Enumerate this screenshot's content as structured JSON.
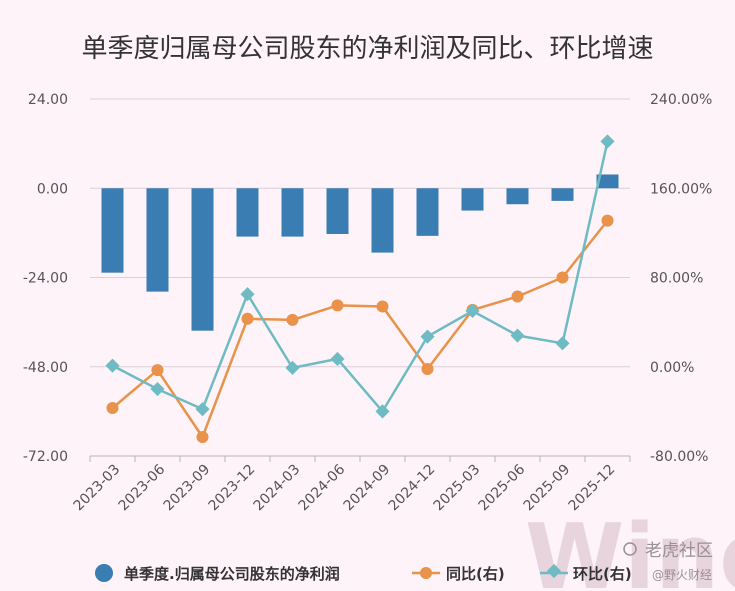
{
  "chart_data": {
    "type": "bar+line",
    "title": "单季度归属母公司股东的净利润及同比、环比增速",
    "categories": [
      "2023-03",
      "2023-06",
      "2023-09",
      "2023-12",
      "2024-03",
      "2024-06",
      "2024-09",
      "2024-12",
      "2025-03",
      "2025-06",
      "2025-09",
      "2025-12"
    ],
    "left_axis": {
      "min": -72,
      "max": 24,
      "ticks": [
        "24.00",
        "0.00",
        "-24.00",
        "-48.00",
        "-72.00"
      ]
    },
    "right_axis": {
      "min": -80,
      "max": 240,
      "ticks": [
        "240.00%",
        "160.00%",
        "80.00%",
        "0.00%",
        "-80.00%"
      ]
    },
    "series": [
      {
        "name": "单季度.归属母公司股东的净利润",
        "type": "bar",
        "axis": "left",
        "color": "#3a7db3",
        "values": [
          -22.7,
          -27.8,
          -38.3,
          -13.0,
          -13.0,
          -12.3,
          -17.3,
          -12.8,
          -6.0,
          -4.3,
          -3.4,
          3.7
        ]
      },
      {
        "name": "同比(右)",
        "type": "line",
        "axis": "right",
        "marker": "circle",
        "color": "#e8924a",
        "values": [
          -37,
          -3,
          -63,
          43,
          42,
          55,
          54,
          -2,
          51,
          63,
          80,
          131
        ]
      },
      {
        "name": "环比(右)",
        "type": "line",
        "axis": "right",
        "marker": "diamond",
        "color": "#6fbbc4",
        "values": [
          1,
          -20,
          -38,
          65,
          -1,
          7,
          -40,
          27,
          50,
          28,
          21,
          202
        ]
      }
    ],
    "legend_position": "bottom"
  },
  "watermark": {
    "big": "Wind",
    "brand": "老虎社区",
    "handle": "@野火财经"
  },
  "colors": {
    "background": "#fdf3f8",
    "grid": "#dcd0d8"
  }
}
